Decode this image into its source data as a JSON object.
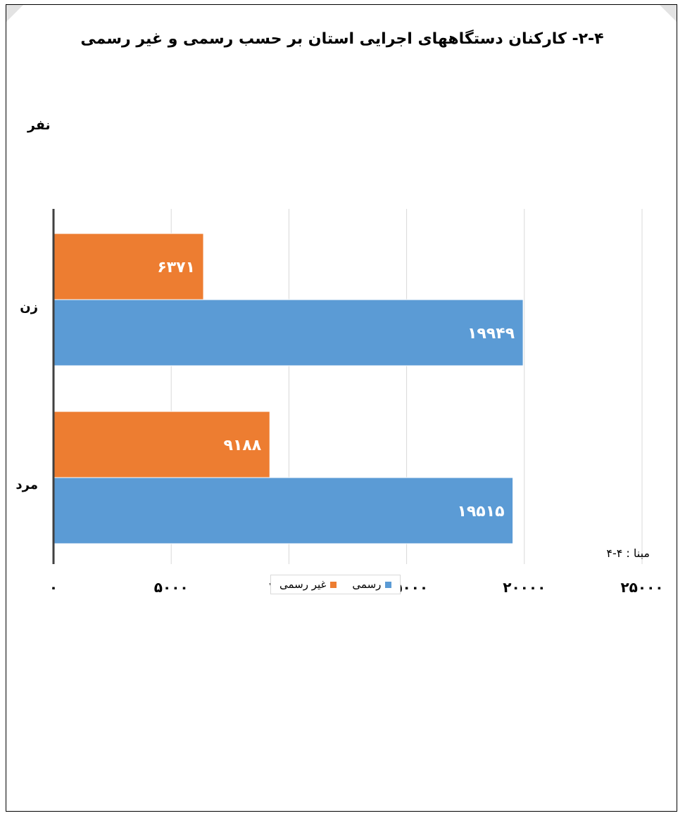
{
  "chart_data": {
    "type": "bar",
    "orientation": "horizontal",
    "title": "۲-۴- کارکنان دستگاههای اجرایی استان بر حسب رسمی و غیر رسمی",
    "unit_label": "نفر",
    "categories": [
      "زن",
      "مرد"
    ],
    "series": [
      {
        "name": "غیر رسمی",
        "color": "#ed7d31",
        "values": [
          6371,
          9188
        ],
        "labels": [
          "۶۳۷۱",
          "۹۱۸۸"
        ]
      },
      {
        "name": "رسمی",
        "color": "#5b9bd5",
        "values": [
          19949,
          19515
        ],
        "labels": [
          "۱۹۹۴۹",
          "۱۹۵۱۵"
        ]
      }
    ],
    "xlim": [
      0,
      25000
    ],
    "ticks": [
      0,
      5000,
      10000,
      15000,
      20000,
      25000
    ],
    "tick_labels": [
      "۰",
      "۵۰۰۰",
      "۱۰۰۰۰",
      "۱۵۰۰۰",
      "۲۰۰۰۰",
      "۲۵۰۰۰"
    ],
    "grid": "vertical",
    "legend_position": "bottom"
  },
  "note": "مبنا : ۴-۴"
}
